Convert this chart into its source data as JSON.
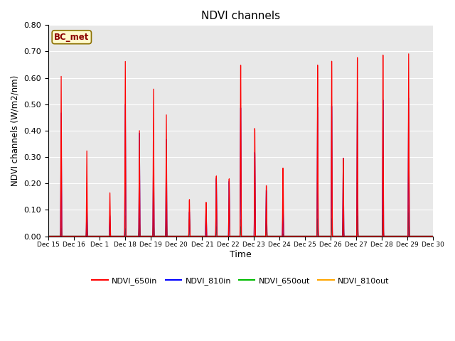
{
  "title": "NDVI channels",
  "xlabel": "Time",
  "ylabel": "NDVI channels (W/m2/nm)",
  "ylim": [
    0.0,
    0.8
  ],
  "yticks": [
    0.0,
    0.1,
    0.2,
    0.3,
    0.4,
    0.5,
    0.6,
    0.7,
    0.8
  ],
  "legend_label": "BC_met",
  "series_colors": {
    "NDVI_650in": "#FF0000",
    "NDVI_810in": "#0000FF",
    "NDVI_650out": "#00BB00",
    "NDVI_810out": "#FFA500"
  },
  "background_color": "#E8E8E8",
  "tick_labels": [
    "Dec 15",
    "Dec 16",
    "Dec 1",
    "Dec 18",
    "Dec 19",
    "Dec 20",
    "Dec 21",
    "Dec 22",
    "Dec 23",
    "Dec 24",
    "Dec 25",
    "Dec 26",
    "Dec 27",
    "Dec 28",
    "Dec 29",
    "Dec 30"
  ],
  "spike_positions": [
    0.5,
    1.5,
    2.4,
    3.0,
    3.55,
    4.1,
    4.6,
    5.5,
    6.15,
    6.55,
    7.05,
    7.5,
    8.05,
    8.5,
    9.15,
    9.65,
    10.5,
    11.05,
    11.5,
    12.05,
    12.5,
    13.05,
    13.5,
    14.05,
    14.5
  ],
  "p650in": [
    0.61,
    0.33,
    0.17,
    0.69,
    0.42,
    0.59,
    0.49,
    0.15,
    0.14,
    0.25,
    0.24,
    0.72,
    0.45,
    0.21,
    0.28,
    0.0,
    0.69,
    0.7,
    0.31,
    0.705,
    0.0,
    0.705,
    0.0,
    0.7,
    0.0
  ],
  "p810in": [
    0.47,
    0.13,
    0.08,
    0.52,
    0.41,
    0.38,
    0.39,
    0.1,
    0.12,
    0.24,
    0.23,
    0.54,
    0.35,
    0.19,
    0.13,
    0.0,
    0.52,
    0.52,
    0.31,
    0.53,
    0.0,
    0.53,
    0.0,
    0.53,
    0.0
  ],
  "p650out": [
    0.03,
    0.04,
    0.0,
    0.03,
    0.07,
    0.07,
    0.07,
    0.07,
    0.0,
    0.04,
    0.0,
    0.04,
    0.0,
    0.07,
    0.01,
    0.0,
    0.07,
    0.07,
    0.07,
    0.08,
    0.0,
    0.08,
    0.0,
    0.09,
    0.0
  ],
  "p810out": [
    0.06,
    0.08,
    0.01,
    0.08,
    0.07,
    0.07,
    0.11,
    0.0,
    0.0,
    0.07,
    0.0,
    0.07,
    0.0,
    0.02,
    0.0,
    0.0,
    0.11,
    0.11,
    0.0,
    0.12,
    0.0,
    0.12,
    0.0,
    0.12,
    0.0
  ]
}
